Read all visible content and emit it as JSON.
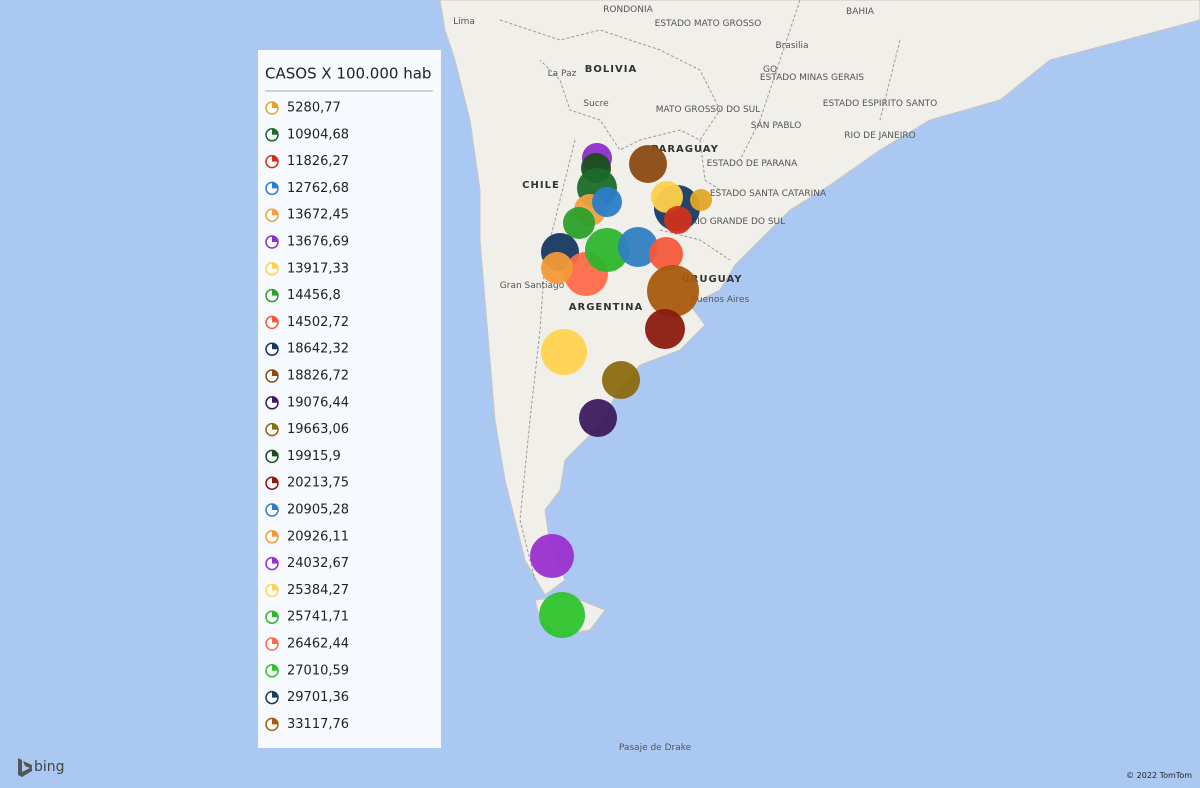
{
  "legend": {
    "title": "CASOS X 100.000 hab",
    "items": [
      {
        "label": "5280,77",
        "color": "#e0a526"
      },
      {
        "label": "10904,68",
        "color": "#1a6b2a"
      },
      {
        "label": "11826,27",
        "color": "#d0311c"
      },
      {
        "label": "12762,68",
        "color": "#2a7dc9"
      },
      {
        "label": "13672,45",
        "color": "#f0a040"
      },
      {
        "label": "13676,69",
        "color": "#8b2fc9"
      },
      {
        "label": "13917,33",
        "color": "#ffd04a"
      },
      {
        "label": "14456,8",
        "color": "#2aa02a"
      },
      {
        "label": "14502,72",
        "color": "#f4583a"
      },
      {
        "label": "18642,32",
        "color": "#163860"
      },
      {
        "label": "18826,72",
        "color": "#8b4a12"
      },
      {
        "label": "19076,44",
        "color": "#3c1a5e"
      },
      {
        "label": "19663,06",
        "color": "#8b6b10"
      },
      {
        "label": "19915,9",
        "color": "#1a4e1a"
      },
      {
        "label": "20213,75",
        "color": "#8b1a10"
      },
      {
        "label": "20905,28",
        "color": "#2e7fc0"
      },
      {
        "label": "20926,11",
        "color": "#f29a38"
      },
      {
        "label": "24032,67",
        "color": "#9b30d0"
      },
      {
        "label": "25384,27",
        "color": "#ffd24f"
      },
      {
        "label": "25741,71",
        "color": "#2db52d"
      },
      {
        "label": "26462,44",
        "color": "#ff6a4a"
      },
      {
        "label": "27010,59",
        "color": "#2ec42e"
      },
      {
        "label": "29701,36",
        "color": "#163b66"
      },
      {
        "label": "33117,76",
        "color": "#a85a0e"
      }
    ]
  },
  "map_labels": [
    "Lima",
    "BOLIVIA",
    "La Paz",
    "Sucre",
    "RONDONIA",
    "ESTADO MATO GROSSO",
    "Brasilia",
    "GO",
    "ESTADO MINAS GERAIS",
    "BAHIA",
    "MATO GROSSO DO SUL",
    "SAN PABLO",
    "ESTADO ESPIRITO SANTO",
    "RIO DE JANEIRO",
    "PARAGUAY",
    "ESTADO DE PARANA",
    "ESTADO SANTA CATARINA",
    "RIO GRANDE DO SUL",
    "CHILE",
    "Gran Santiago",
    "ARGENTINA",
    "Buenos Aires",
    "URUGUAY",
    "Pasaje de Drake"
  ],
  "footer": {
    "logo": "bing",
    "copyright": "© 2022 TomTom"
  }
}
